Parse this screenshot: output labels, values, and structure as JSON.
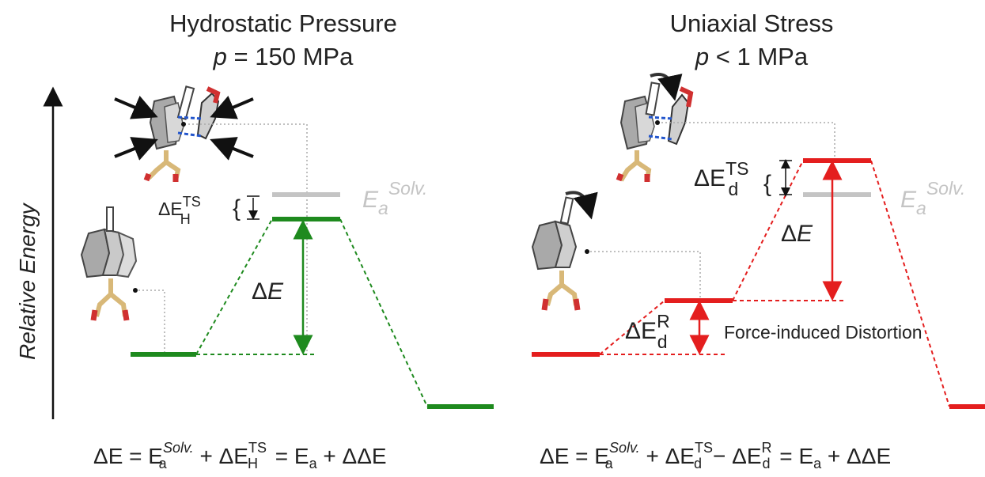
{
  "left_panel": {
    "title_line1": "Hydrostatic Pressure",
    "pressure_var": "p",
    "pressure_value": "= 150 MPa",
    "delta_e": "ΔE",
    "delta_e_ts_h": {
      "base": "ΔE",
      "sup": "TS",
      "sub": "H"
    },
    "ea_solv": {
      "base": "E",
      "sub": "a",
      "sup": "Solv."
    },
    "equation": {
      "lhs": "ΔE = E",
      "t1_sup": "Solv.",
      "t1_sub": "a",
      "plus1": " + ΔE",
      "t2_sup": "TS",
      "t2_sub": "H",
      "rhs": " =  E",
      "t3_sub": "a",
      "tail": " + ΔΔE"
    }
  },
  "right_panel": {
    "title_line1": "Uniaxial Stress",
    "pressure_var": "p",
    "pressure_value": "< 1 MPa",
    "delta_e": "ΔE",
    "delta_e_d_ts": {
      "base": "ΔE",
      "sup": "TS",
      "sub": "d"
    },
    "delta_e_d_r": {
      "base": "ΔE",
      "sup": "R",
      "sub": "d"
    },
    "ea_solv": {
      "base": "E",
      "sub": "a",
      "sup": "Solv."
    },
    "distortion_label": "Force-induced Distortion",
    "equation": {
      "lhs": "ΔE = E",
      "t1_sup": "Solv.",
      "t1_sub": "a",
      "plus1": " + ΔE",
      "t2_sup": "TS",
      "t2_sub": "d",
      "minus": "− ΔE",
      "t3_sup": "R",
      "t3_sub": "d",
      "rhs": " = E",
      "t4_sub": "a",
      "tail": " + ΔΔE"
    }
  },
  "y_axis_label": "Relative  Energy",
  "colors": {
    "green": "#1e8a1e",
    "red": "#e41e1e",
    "gray": "#c4c4c4",
    "dots": "#aaaaaa"
  }
}
